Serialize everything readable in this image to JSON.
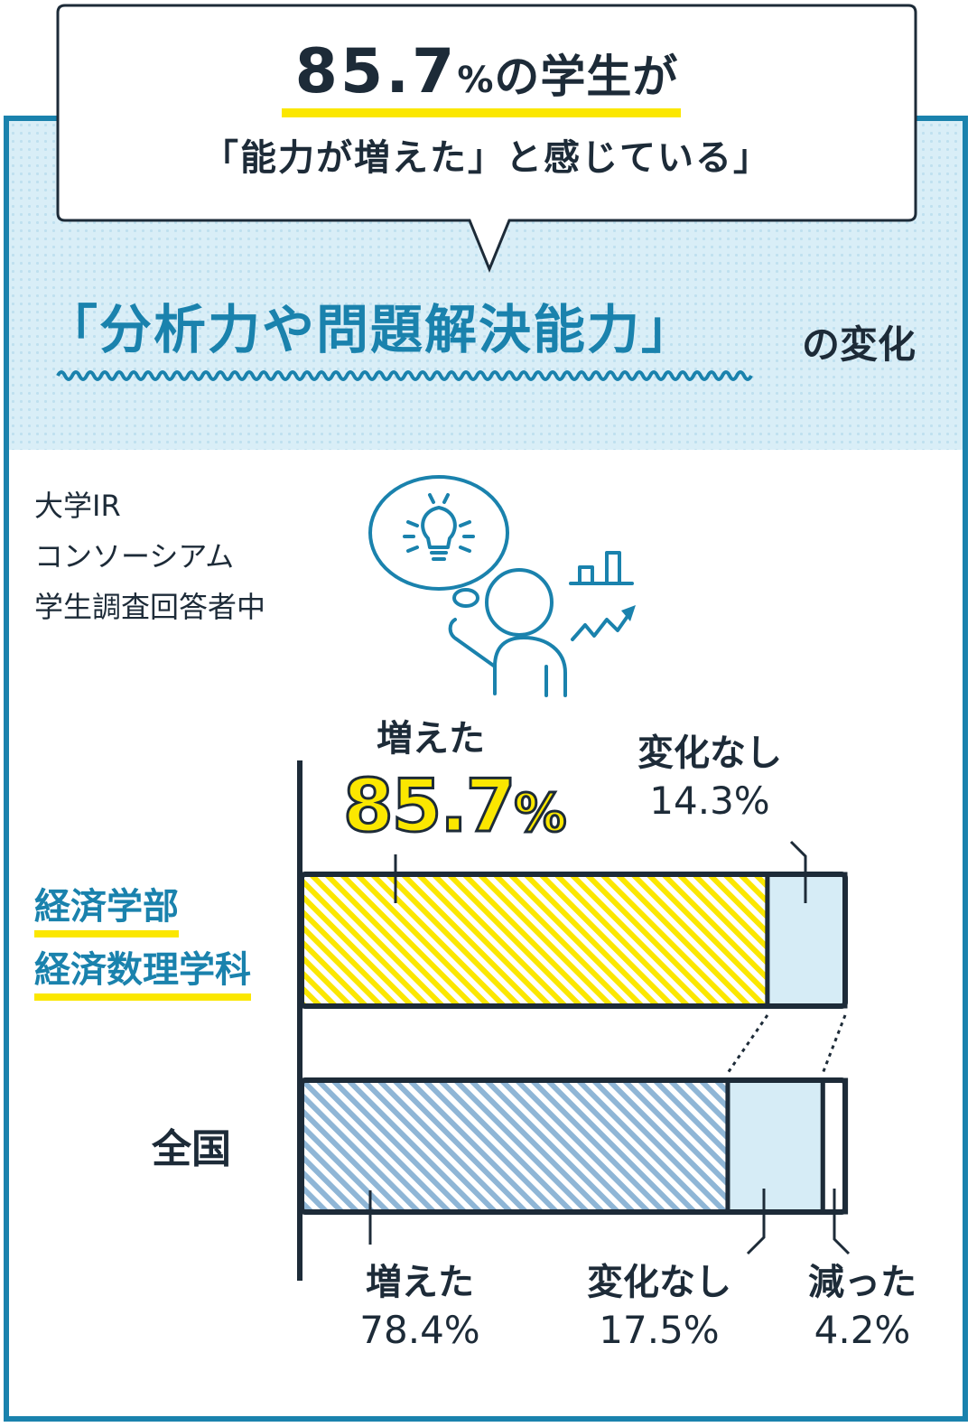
{
  "headline": {
    "value": "85.7",
    "unit": "%",
    "line1_suffix": "の学生が",
    "line2": "「能力が増えた」と感じている」"
  },
  "title": {
    "main": "「分析力や問題解決能力」",
    "suffix": "の変化"
  },
  "source": {
    "lines": [
      "大学IR",
      "コンソーシアム",
      "学生調査回答者中"
    ]
  },
  "icon": "thinking-person-lightbulb-chart-icon",
  "colors": {
    "accent_blue": "#1a82ad",
    "highlight_yellow": "#fbe700",
    "light_blue": "#d6ecf6",
    "hatch_blue": "#8fb6d6",
    "dark": "#1d2b38"
  },
  "chart_data": {
    "type": "bar",
    "orientation": "horizontal",
    "stacked": true,
    "categories": [
      "経済学部 経済数理学科",
      "全国"
    ],
    "category_lines": [
      [
        "経済学部",
        "経済数理学科"
      ],
      [
        "全国"
      ]
    ],
    "series": [
      {
        "name": "増えた",
        "values": [
          85.7,
          78.4
        ]
      },
      {
        "name": "変化なし",
        "values": [
          14.3,
          17.5
        ]
      },
      {
        "name": "減った",
        "values": [
          0,
          4.2
        ]
      }
    ],
    "xlim": [
      0,
      100
    ],
    "unit": "%",
    "labels": {
      "univ_increase": {
        "title": "増えた",
        "value": "85.7",
        "unit": "%"
      },
      "univ_nochange": {
        "title": "変化なし",
        "value": "14.3%"
      },
      "nat_increase": {
        "title": "増えた",
        "value": "78.4%"
      },
      "nat_nochange": {
        "title": "変化なし",
        "value": "17.5%"
      },
      "nat_decrease": {
        "title": "減った",
        "value": "4.2%"
      }
    }
  }
}
